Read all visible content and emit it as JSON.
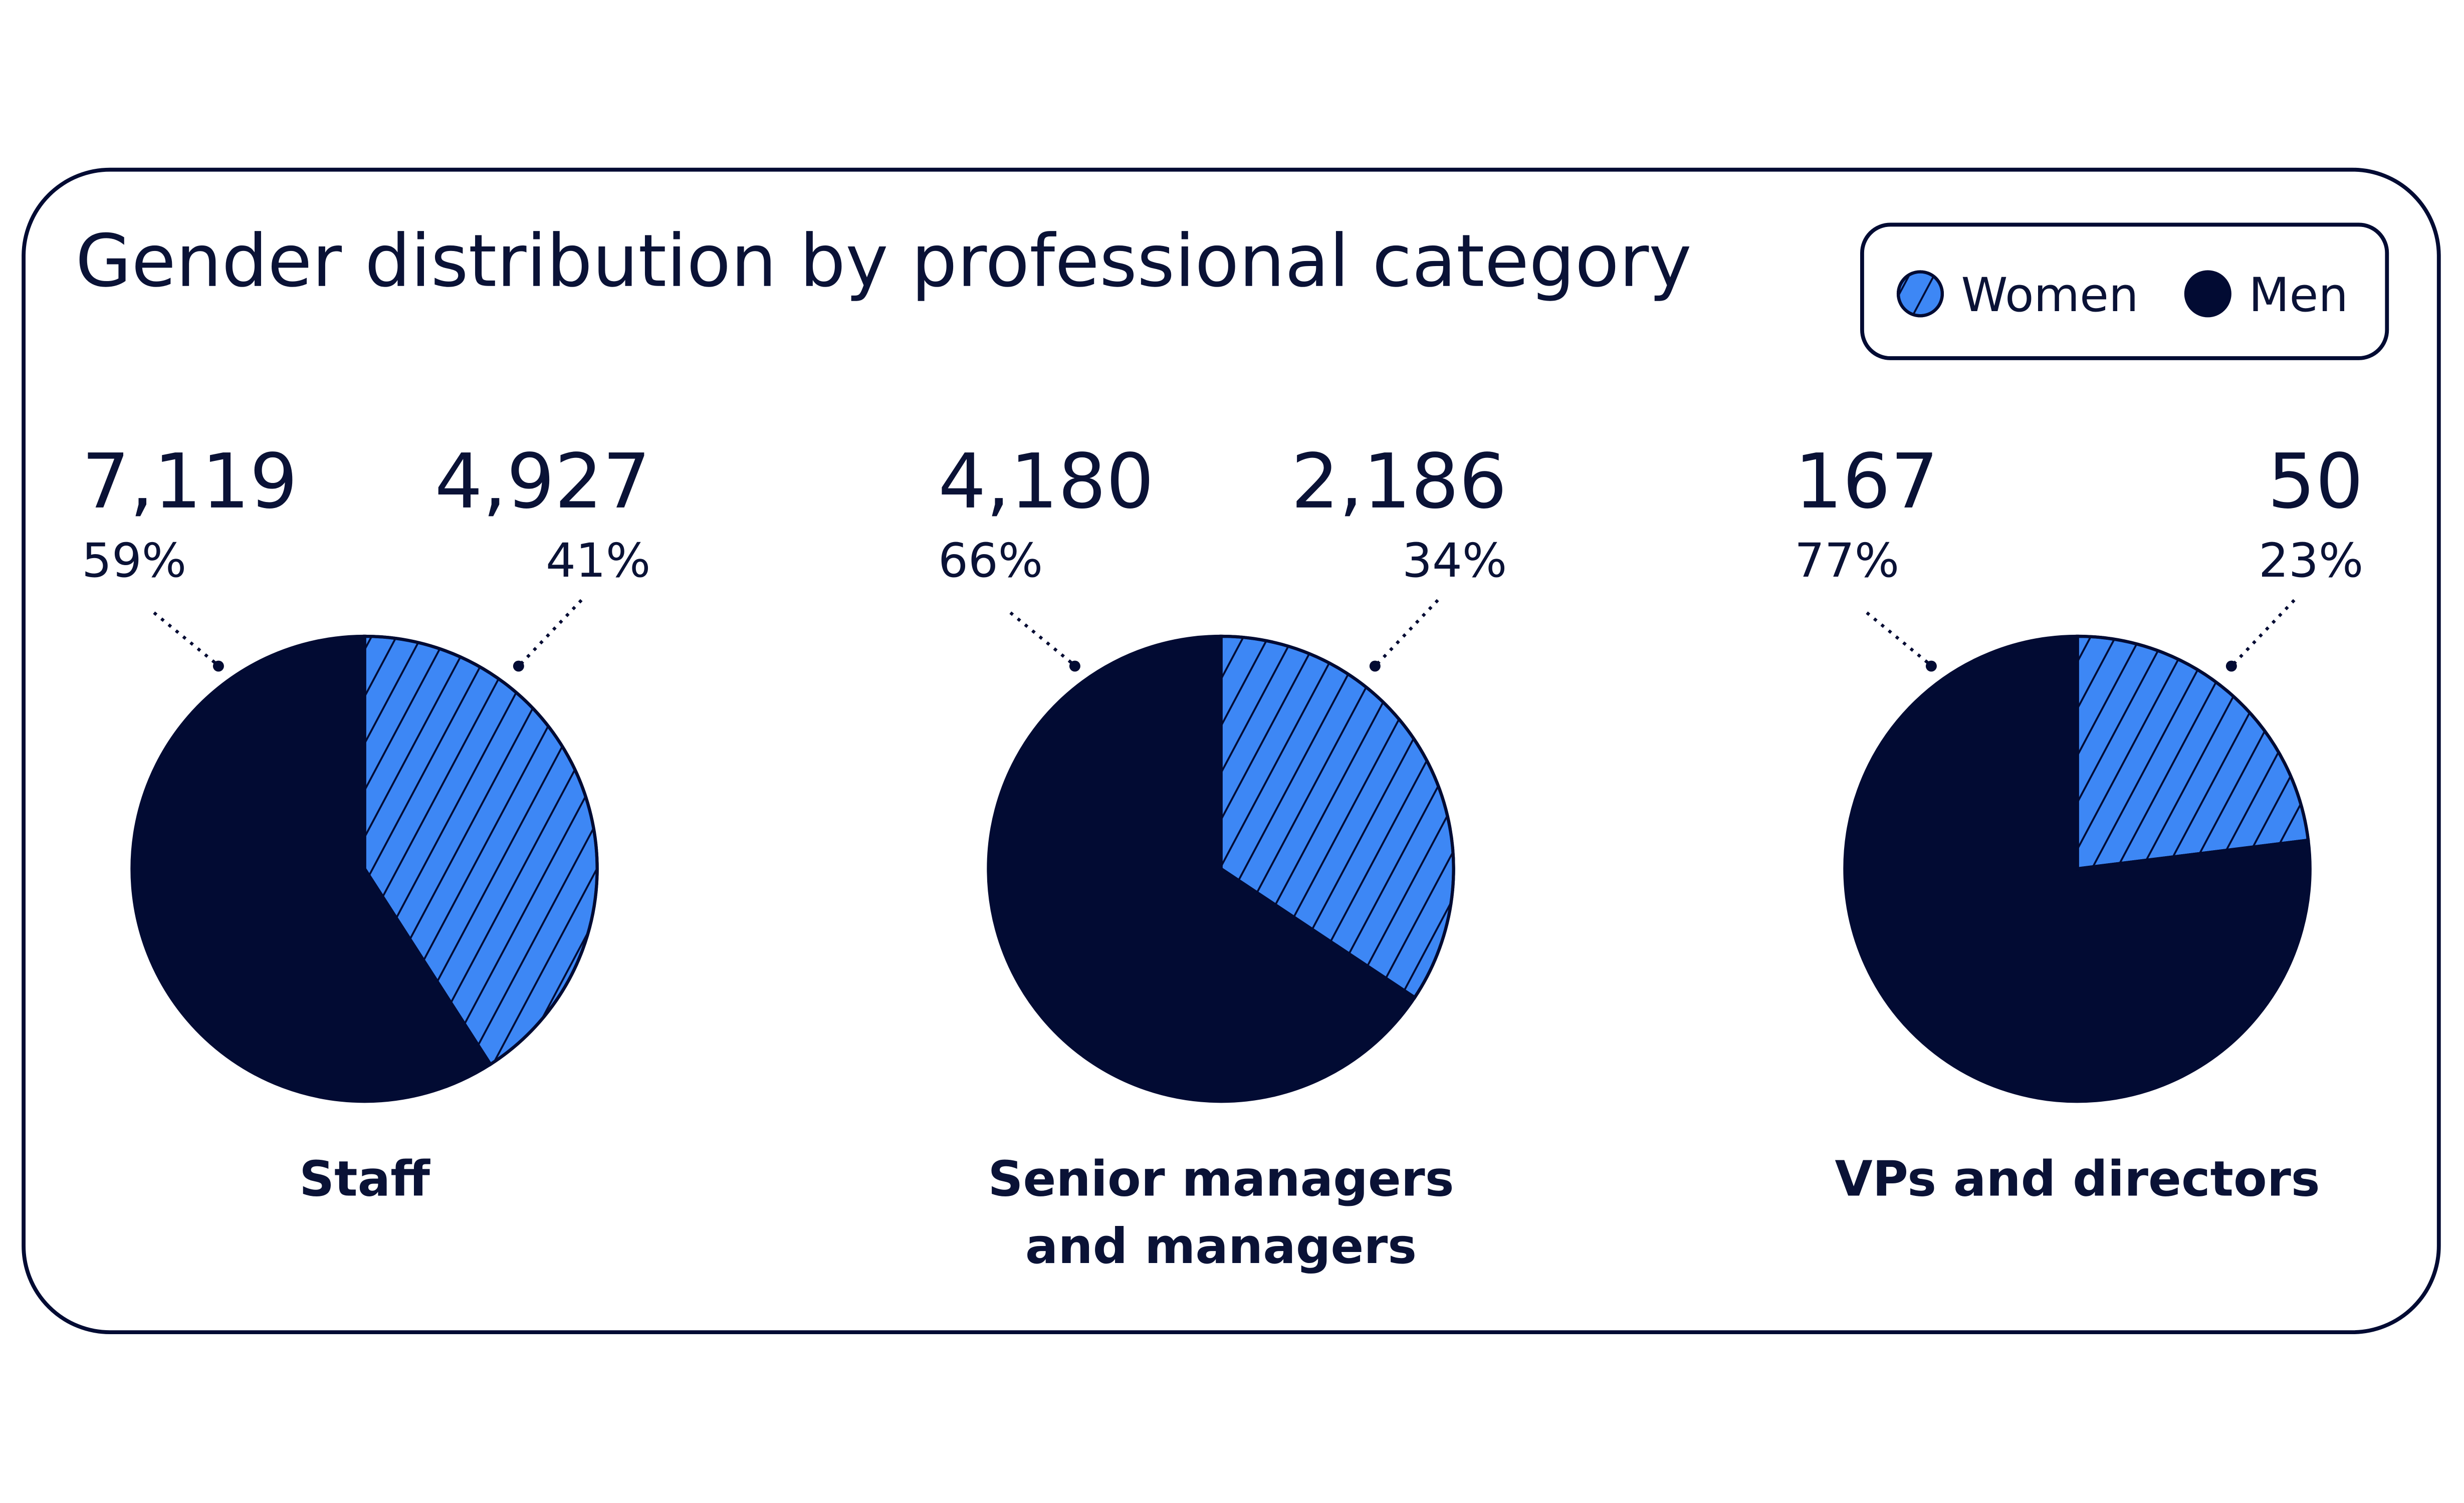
{
  "title": "Gender distribution by professional category",
  "chart_data": [
    {
      "type": "pie",
      "title": "Staff",
      "categories": [
        "Women",
        "Men"
      ],
      "colors": [
        "#3d87f5",
        "#020b33"
      ],
      "values": [
        4927,
        7119
      ],
      "value_labels": [
        "4,927",
        "7,119"
      ],
      "percents": [
        41,
        59
      ],
      "percent_labels": [
        "41%",
        "59%"
      ]
    },
    {
      "type": "pie",
      "title": "Senior managers and managers",
      "categories": [
        "Women",
        "Men"
      ],
      "colors": [
        "#3d87f5",
        "#020b33"
      ],
      "values": [
        2186,
        4180
      ],
      "value_labels": [
        "2,186",
        "4,180"
      ],
      "percents": [
        34,
        66
      ],
      "percent_labels": [
        "34%",
        "66%"
      ]
    },
    {
      "type": "pie",
      "title": "VPs and directors",
      "categories": [
        "Women",
        "Men"
      ],
      "colors": [
        "#3d87f5",
        "#020b33"
      ],
      "values": [
        50,
        167
      ],
      "percents": [
        23,
        77
      ],
      "percent_labels": [
        "23%",
        "77%"
      ]
    }
  ]
}
